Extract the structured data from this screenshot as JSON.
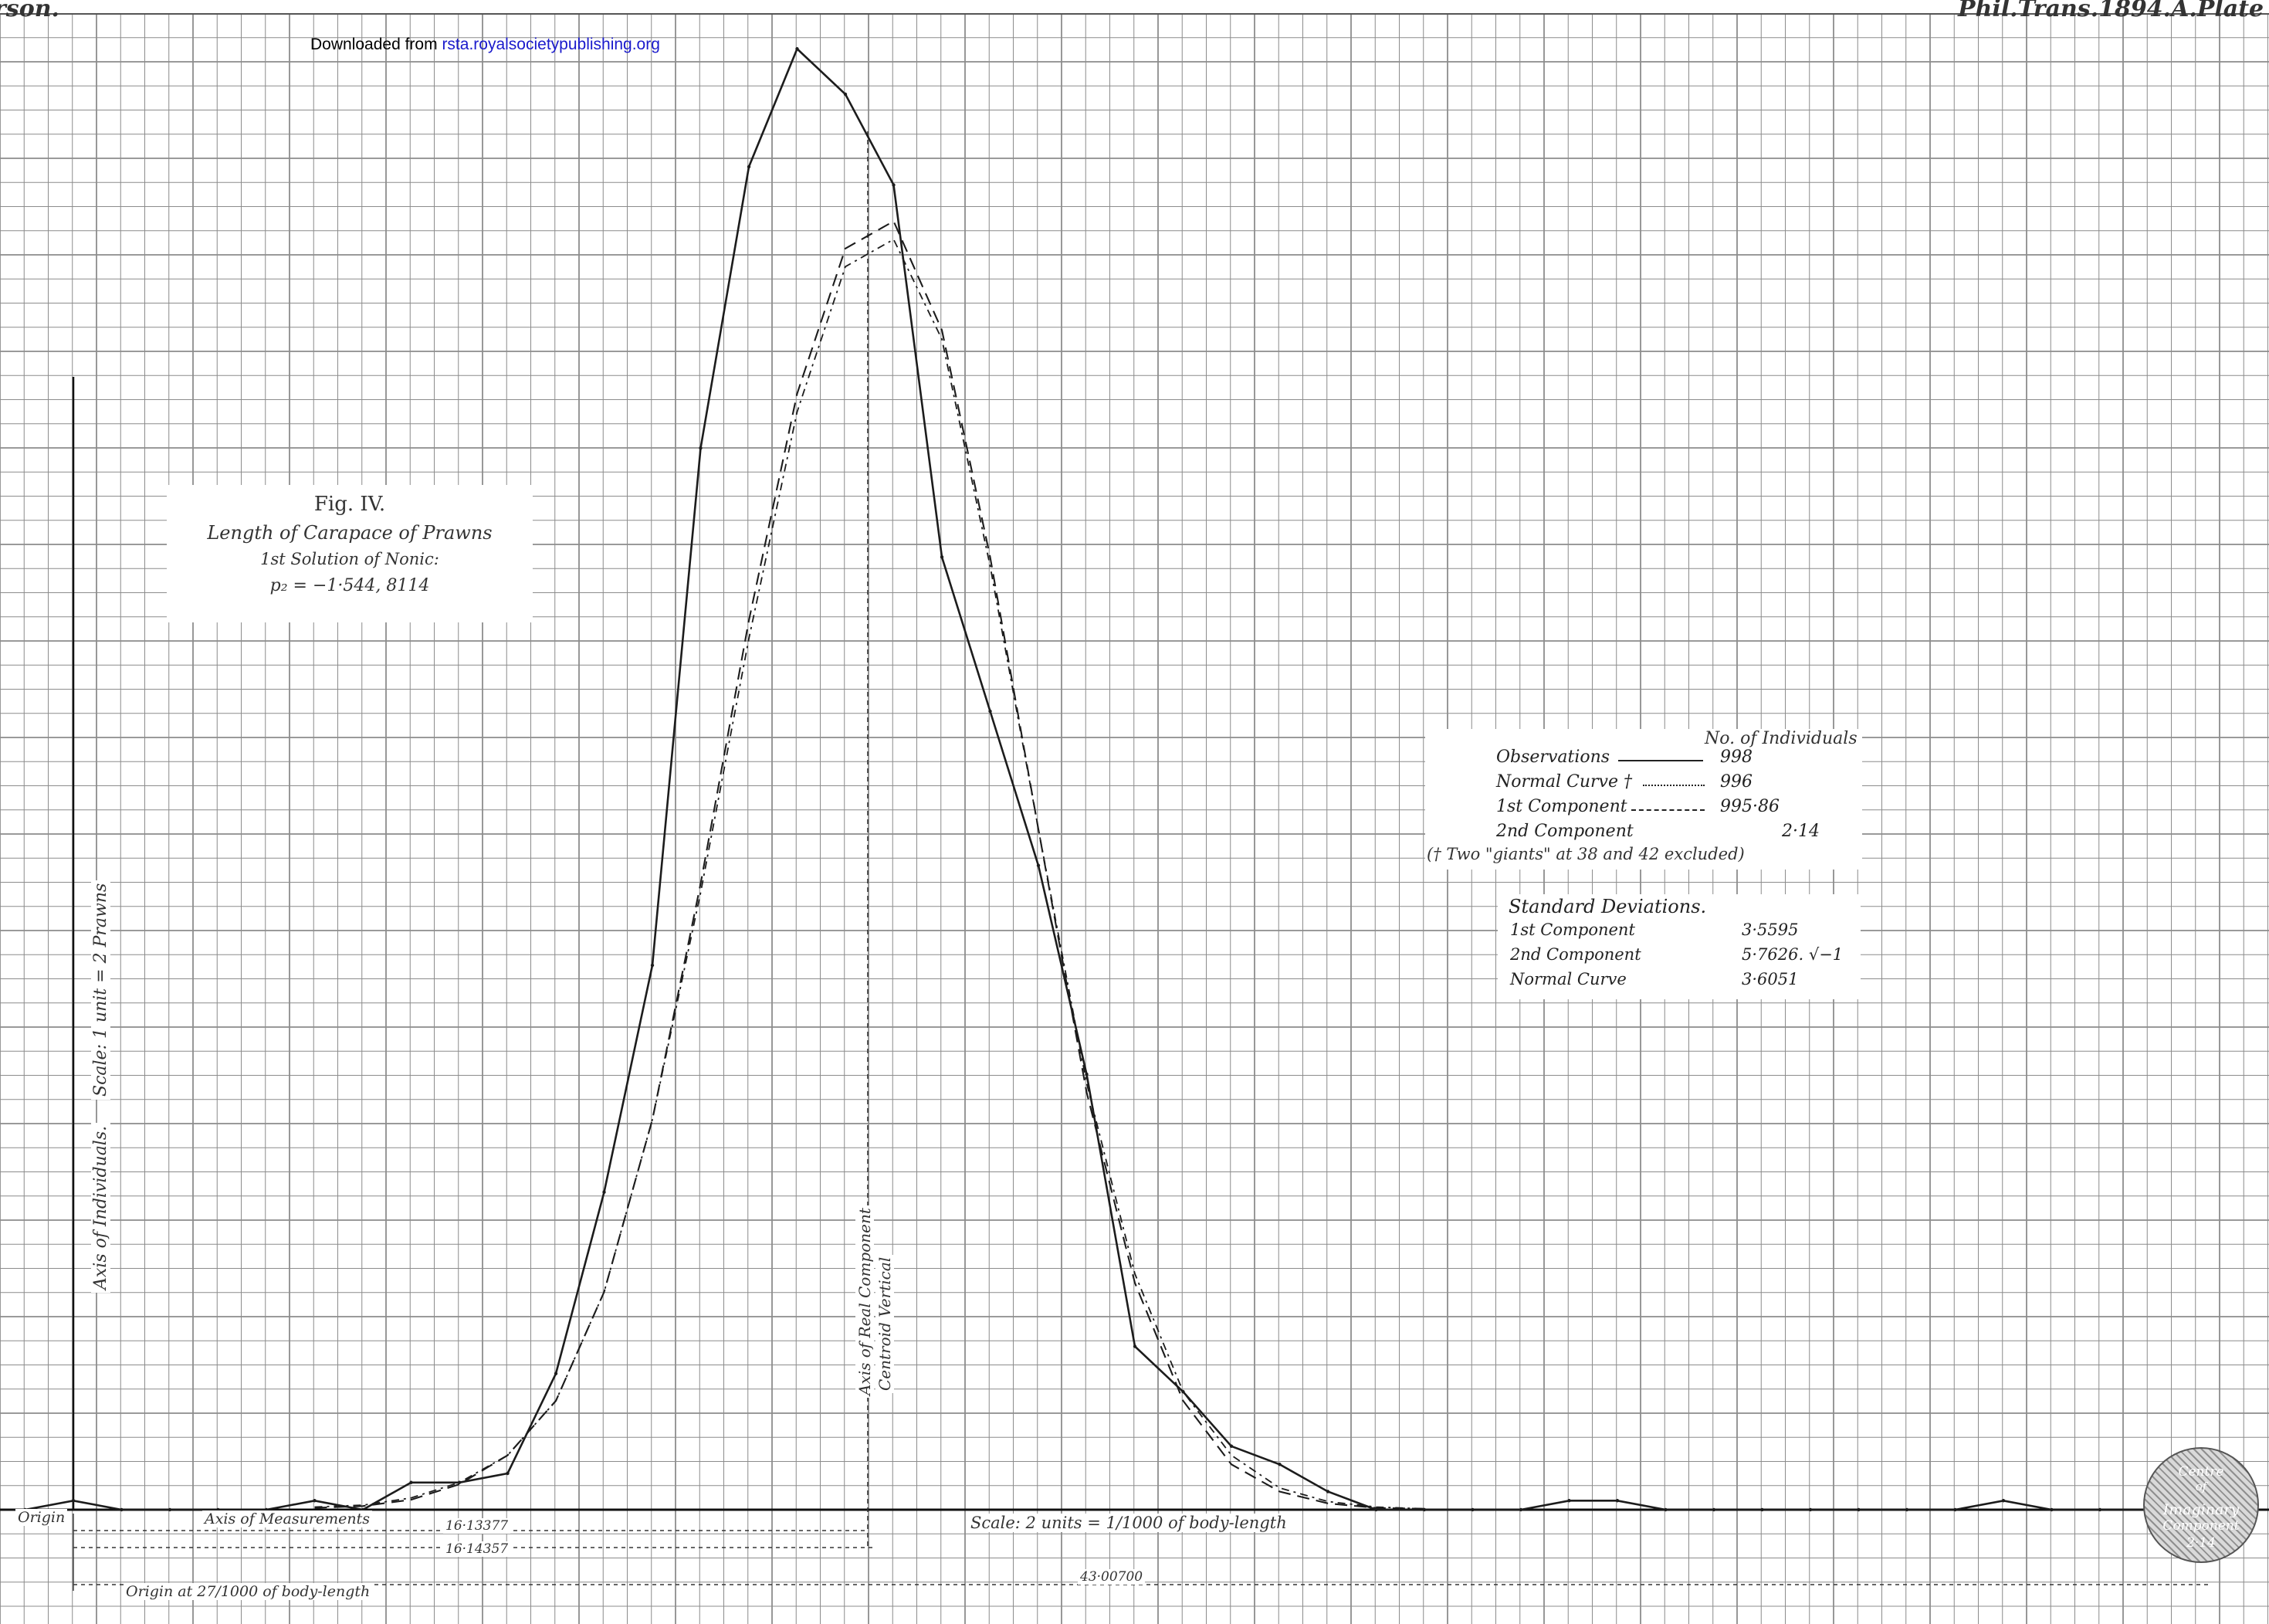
{
  "header": {
    "left": "rson.",
    "right": "Phil.Trans.1894.A.Plate",
    "downloaded_prefix": "Downloaded from",
    "downloaded_link": "rsta.royalsocietypublishing.org"
  },
  "figure": {
    "title": "Fig. IV.",
    "subtitle": "Length of Carapace of Prawns",
    "solution": "1st Solution of Nonic:",
    "root": "p₂ = −1·544, 8114"
  },
  "legend": {
    "heading": "No. of Individuals",
    "rows": [
      {
        "label": "Observations",
        "value": "998"
      },
      {
        "label": "Normal Curve †",
        "value": "996"
      },
      {
        "label": "1st Component",
        "value": "995·86"
      },
      {
        "label": "2nd Component",
        "value": "2·14"
      }
    ],
    "note": "(† Two \"giants\" at 38 and 42 excluded)"
  },
  "deviations": {
    "heading": "Standard Deviations.",
    "rows": [
      {
        "label": "1st Component",
        "value": "3·5595"
      },
      {
        "label": "2nd Component",
        "value": "5·7626. √−1"
      },
      {
        "label": "Normal Curve",
        "value": "3·6051"
      }
    ]
  },
  "axes": {
    "y_axis": "Axis of Individuals.",
    "y_scale": "Scale: 1 unit = 2 Prawns",
    "x_axis": "Axis of Measurements",
    "origin": "Origin",
    "origin_note": "Origin at 27/1000 of body-length",
    "scale_note": "Scale: 2 units = 1/1000 of body-length",
    "component_axis": "Axis of Real Component",
    "centroid": "Centroid Vertical",
    "dim1": "16·13377",
    "dim2": "16·14357",
    "dim3": "43·00700",
    "imaginary": [
      "Centre",
      "of",
      "Imaginary",
      "Component",
      "2·14"
    ]
  },
  "chart_data": {
    "type": "line",
    "xlabel": "Axis of Measurements",
    "ylabel": "Axis of Individuals.",
    "xlim": [
      0,
      46
    ],
    "ylim": [
      0,
      165
    ],
    "colors": {
      "line": "#1c1c1c",
      "grid": "#8c8c8c",
      "paper": "#ffffff"
    },
    "series": [
      {
        "name": "Observations",
        "style": "solid",
        "x": [
          -1,
          0,
          1,
          2,
          3,
          4,
          5,
          6,
          7,
          8,
          9,
          10,
          11,
          12,
          13,
          14,
          15,
          16,
          17,
          18,
          19,
          20,
          21,
          22,
          23,
          24,
          25,
          26,
          27,
          28,
          29,
          30,
          31,
          32,
          33,
          34,
          35,
          36,
          37,
          38,
          39,
          40,
          41,
          42,
          43,
          44,
          45
        ],
        "y": [
          0,
          1,
          0,
          0,
          0,
          0,
          1,
          0,
          3,
          3,
          4,
          15,
          35,
          60,
          117,
          148,
          161,
          156,
          146,
          105,
          88,
          71,
          48,
          18,
          13,
          7,
          5,
          2,
          0,
          0,
          0,
          0,
          1,
          1,
          0,
          0,
          0,
          0,
          0,
          0,
          0,
          1,
          0,
          0,
          0,
          0,
          1
        ]
      },
      {
        "name": "Normal Curve",
        "style": "dash-dot",
        "x": [
          5,
          6,
          7,
          8,
          9,
          10,
          11,
          12,
          13,
          14,
          15,
          16,
          17,
          18,
          19,
          20,
          21,
          22,
          23,
          24,
          25,
          26,
          27,
          28
        ],
        "y": [
          0.3,
          0.5,
          1.3,
          3,
          6,
          12,
          24,
          43,
          68,
          96,
          121,
          137,
          140,
          129,
          104,
          75,
          47,
          26,
          13,
          6,
          2.4,
          0.9,
          0.3,
          0.1
        ]
      },
      {
        "name": "1st Component",
        "style": "dashed",
        "x": [
          5,
          6,
          7,
          8,
          9,
          10,
          11,
          12,
          13,
          14,
          15,
          16,
          17,
          18,
          19,
          20,
          21,
          22,
          23,
          24,
          25,
          26,
          27,
          28
        ],
        "y": [
          0.2,
          0.4,
          1.1,
          2.8,
          6,
          12,
          24,
          43,
          69,
          98,
          123,
          139,
          142,
          130,
          105,
          75,
          46,
          25,
          12,
          5,
          2,
          0.7,
          0.2,
          0.1
        ]
      }
    ]
  }
}
